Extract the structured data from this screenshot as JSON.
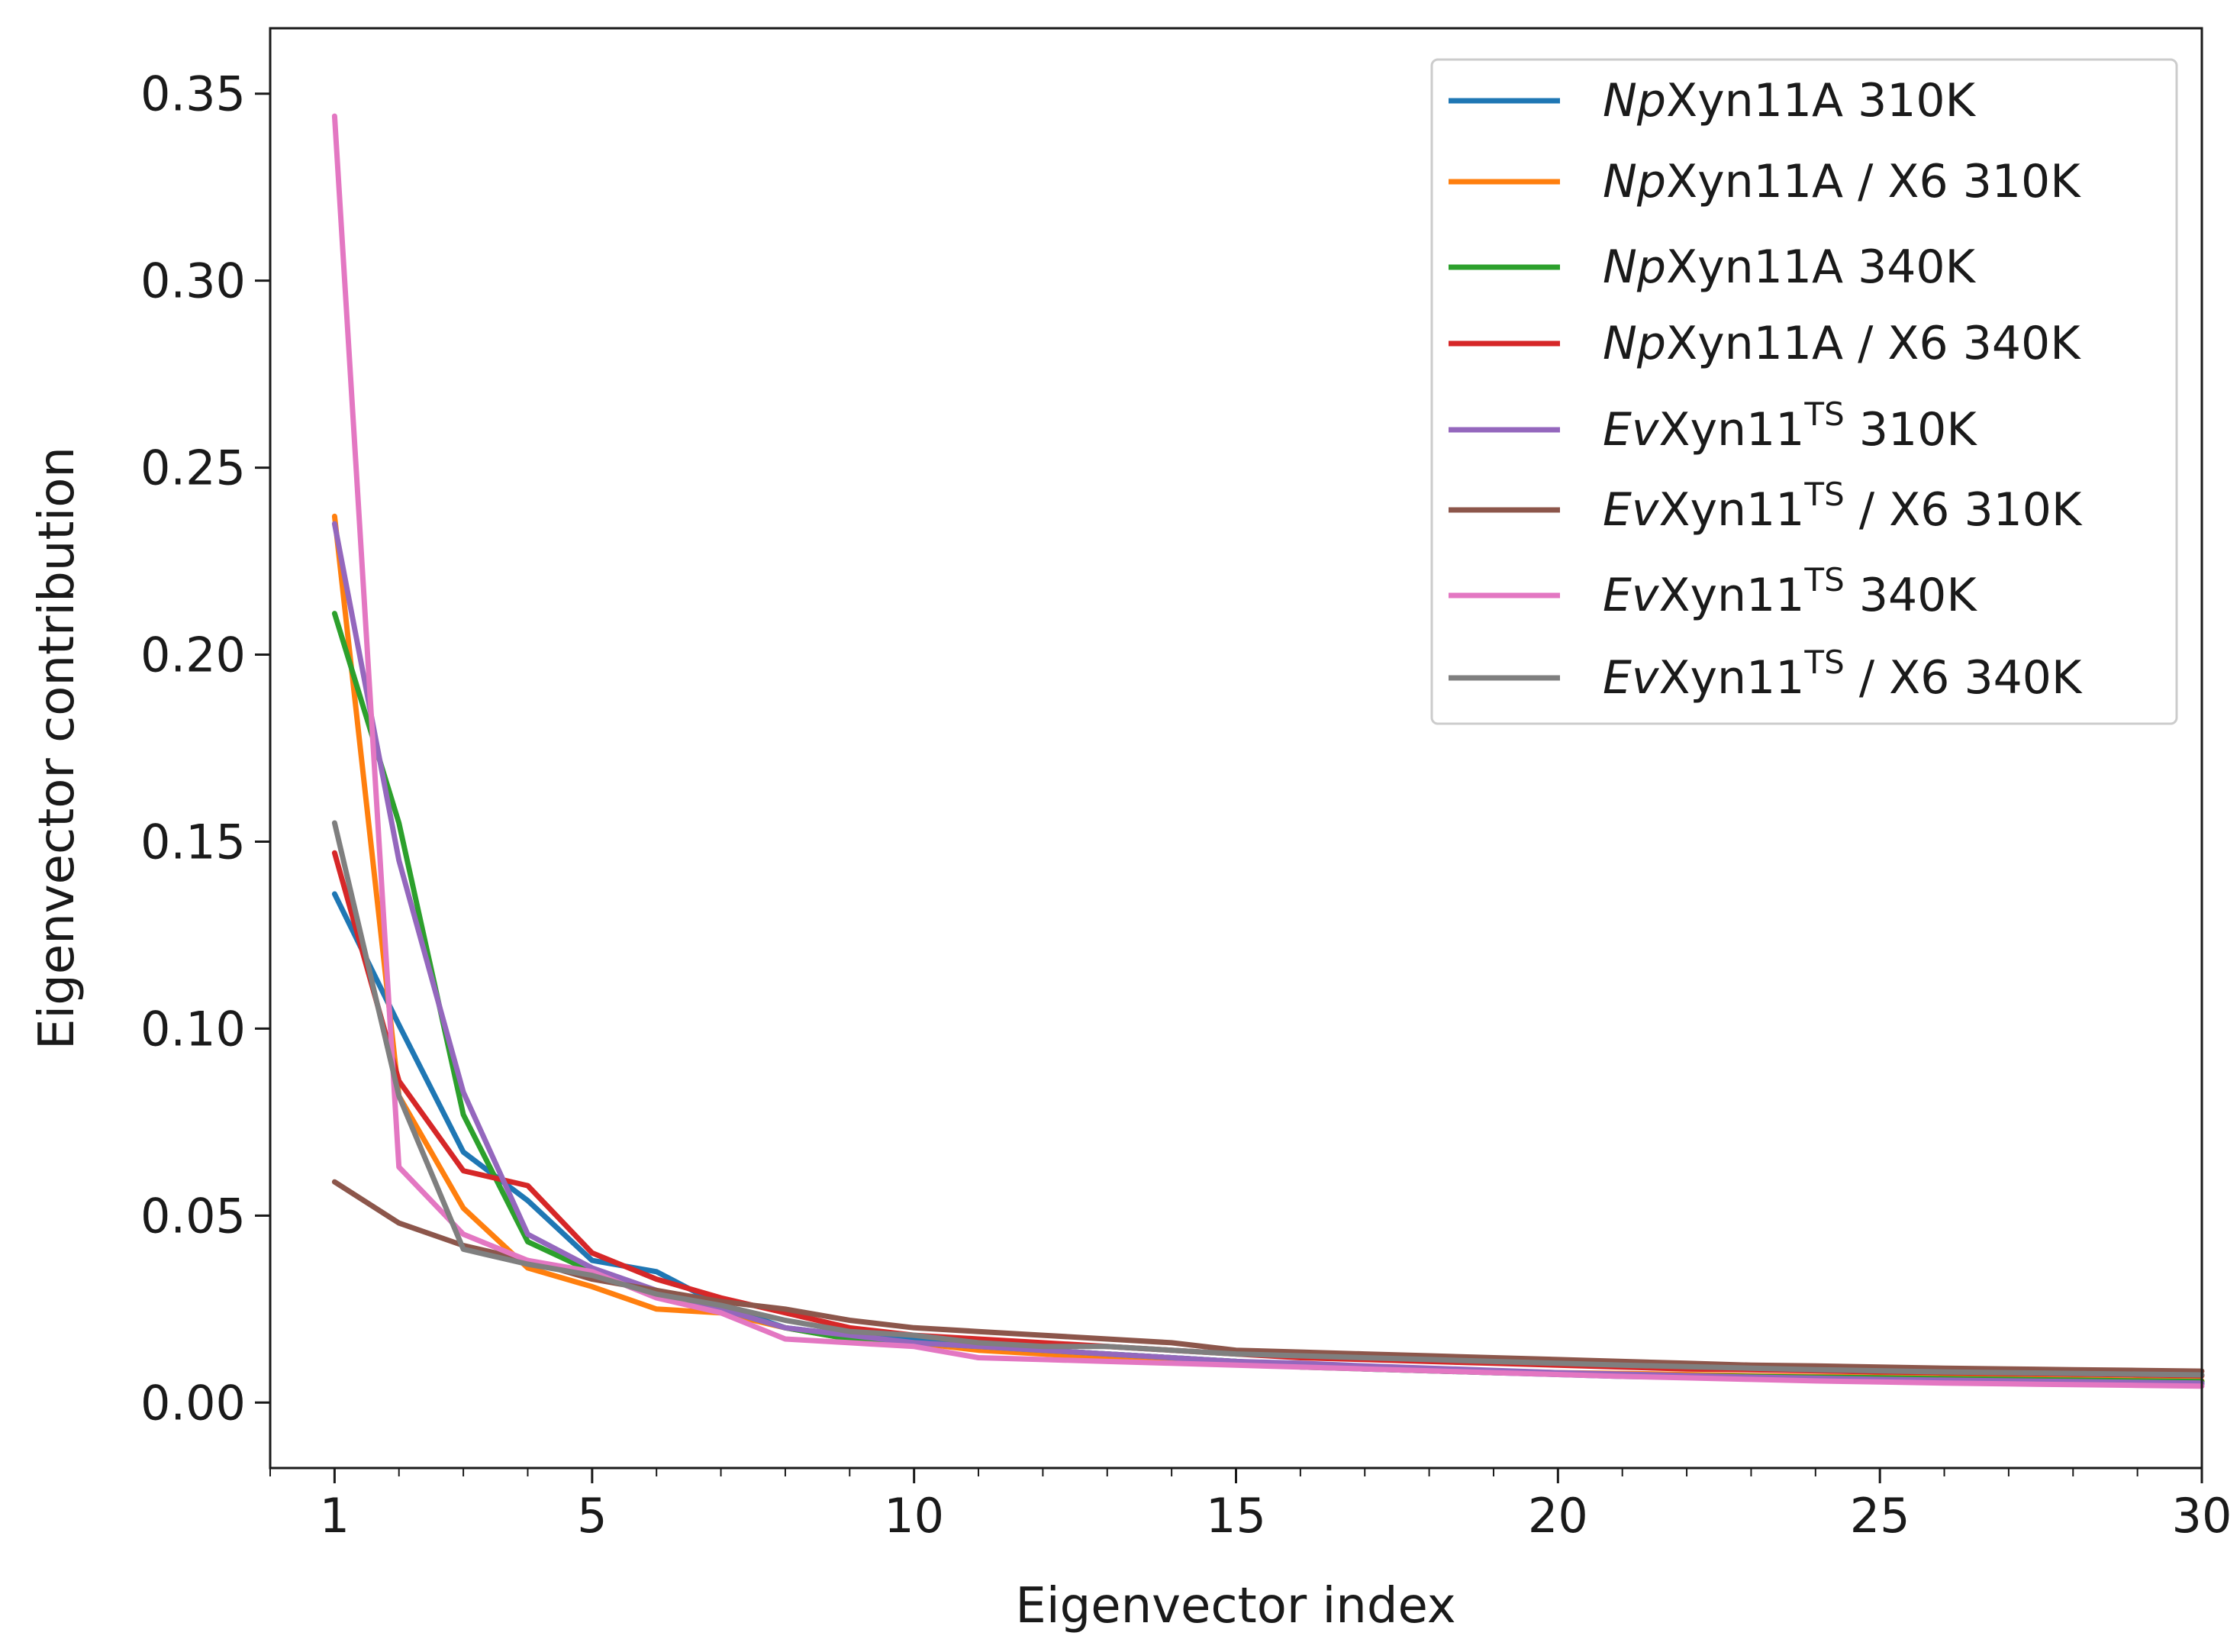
{
  "chart_data": {
    "type": "line",
    "title": "",
    "xlabel": "Eigenvector index",
    "ylabel": "Eigenvector contribution",
    "xlim": [
      0,
      30
    ],
    "ylim": [
      -0.0175,
      0.3675
    ],
    "xticks": [
      1,
      5,
      10,
      15,
      20,
      25,
      30
    ],
    "xtick_labels": [
      "1",
      "5",
      "10",
      "15",
      "20",
      "25",
      "30"
    ],
    "yticks": [
      0.0,
      0.05,
      0.1,
      0.15,
      0.2,
      0.25,
      0.3,
      0.35
    ],
    "ytick_labels": [
      "0.00",
      "0.05",
      "0.10",
      "0.15",
      "0.20",
      "0.25",
      "0.30",
      "0.35"
    ],
    "grid": false,
    "legend_position": "top-right",
    "x": [
      1,
      2,
      3,
      4,
      5,
      6,
      7,
      8,
      9,
      10,
      11,
      12,
      13,
      14,
      15,
      16,
      17,
      18,
      19,
      20,
      21,
      22,
      23,
      24,
      25,
      26,
      27,
      28,
      29,
      30
    ],
    "series": [
      {
        "name": "NpXyn11A 310K",
        "name_italic": "Np",
        "name_mid": "Xyn11A",
        "name_sup": "",
        "name_tail": " 310K",
        "color": "#1f77b4",
        "values": [
          0.136,
          0.101,
          0.067,
          0.054,
          0.038,
          0.035,
          0.026,
          0.02,
          0.018,
          0.017,
          0.015,
          0.014,
          0.013,
          0.012,
          0.011,
          0.01,
          0.009,
          0.0085,
          0.008,
          0.0075,
          0.007,
          0.0068,
          0.0065,
          0.0062,
          0.006,
          0.0058,
          0.0056,
          0.0054,
          0.0052,
          0.005
        ]
      },
      {
        "name": "NpXyn11A / X6 310K",
        "name_italic": "Np",
        "name_mid": "Xyn11A",
        "name_sup": "",
        "name_tail": " / X6 310K",
        "color": "#ff7f0e",
        "values": [
          0.237,
          0.082,
          0.052,
          0.036,
          0.031,
          0.025,
          0.024,
          0.02,
          0.017,
          0.016,
          0.014,
          0.013,
          0.012,
          0.011,
          0.0105,
          0.01,
          0.0095,
          0.009,
          0.0085,
          0.008,
          0.0078,
          0.0075,
          0.0072,
          0.007,
          0.0068,
          0.0066,
          0.0064,
          0.0062,
          0.006,
          0.0058
        ]
      },
      {
        "name": "NpXyn11A 340K",
        "name_italic": "Np",
        "name_mid": "Xyn11A",
        "name_sup": "",
        "name_tail": " 340K",
        "color": "#2ca02c",
        "values": [
          0.211,
          0.155,
          0.077,
          0.043,
          0.035,
          0.029,
          0.025,
          0.02,
          0.017,
          0.016,
          0.015,
          0.014,
          0.013,
          0.012,
          0.011,
          0.0095,
          0.009,
          0.0085,
          0.008,
          0.0078,
          0.0075,
          0.0072,
          0.007,
          0.0068,
          0.0066,
          0.0064,
          0.0062,
          0.006,
          0.0058,
          0.0056
        ]
      },
      {
        "name": "NpXyn11A / X6 340K",
        "name_italic": "Np",
        "name_mid": "Xyn11A",
        "name_sup": "",
        "name_tail": " / X6 340K",
        "color": "#d62728",
        "values": [
          0.147,
          0.086,
          0.062,
          0.058,
          0.04,
          0.033,
          0.028,
          0.024,
          0.02,
          0.018,
          0.017,
          0.016,
          0.015,
          0.014,
          0.013,
          0.012,
          0.0115,
          0.011,
          0.0105,
          0.01,
          0.0095,
          0.009,
          0.0088,
          0.0085,
          0.0082,
          0.008,
          0.0078,
          0.0076,
          0.0074,
          0.0072
        ]
      },
      {
        "name": "EvXyn11TS 310K",
        "name_italic": "Ev",
        "name_mid": "Xyn11",
        "name_sup": "TS",
        "name_tail": " 310K",
        "color": "#9467bd",
        "values": [
          0.235,
          0.145,
          0.083,
          0.045,
          0.036,
          0.03,
          0.025,
          0.02,
          0.018,
          0.016,
          0.015,
          0.014,
          0.013,
          0.012,
          0.011,
          0.0105,
          0.0098,
          0.0092,
          0.0086,
          0.008,
          0.0076,
          0.0072,
          0.0068,
          0.0065,
          0.0062,
          0.006,
          0.0058,
          0.0056,
          0.0054,
          0.0052
        ]
      },
      {
        "name": "EvXyn11TS / X6 310K",
        "name_italic": "Ev",
        "name_mid": "Xyn11",
        "name_sup": "TS",
        "name_tail": " / X6 310K",
        "color": "#8c564b",
        "values": [
          0.059,
          0.048,
          0.042,
          0.038,
          0.033,
          0.03,
          0.027,
          0.025,
          0.022,
          0.02,
          0.019,
          0.018,
          0.017,
          0.016,
          0.014,
          0.0135,
          0.013,
          0.0125,
          0.012,
          0.0115,
          0.011,
          0.0105,
          0.01,
          0.0098,
          0.0095,
          0.0092,
          0.009,
          0.0088,
          0.0086,
          0.0084
        ]
      },
      {
        "name": "EvXyn11TS 340K",
        "name_italic": "Ev",
        "name_mid": "Xyn11",
        "name_sup": "TS",
        "name_tail": " 340K",
        "color": "#e377c2",
        "values": [
          0.344,
          0.063,
          0.045,
          0.038,
          0.035,
          0.028,
          0.024,
          0.017,
          0.016,
          0.015,
          0.012,
          0.0115,
          0.011,
          0.0105,
          0.01,
          0.0095,
          0.009,
          0.0085,
          0.008,
          0.0075,
          0.007,
          0.0066,
          0.0062,
          0.0058,
          0.0055,
          0.0052,
          0.005,
          0.0048,
          0.0046,
          0.0044
        ]
      },
      {
        "name": "EvXyn11TS / X6 340K",
        "name_italic": "Ev",
        "name_mid": "Xyn11",
        "name_sup": "TS",
        "name_tail": " / X6 340K",
        "color": "#7f7f7f",
        "values": [
          0.155,
          0.082,
          0.041,
          0.037,
          0.034,
          0.029,
          0.026,
          0.022,
          0.019,
          0.018,
          0.016,
          0.015,
          0.015,
          0.014,
          0.013,
          0.0125,
          0.012,
          0.0115,
          0.011,
          0.0105,
          0.01,
          0.0096,
          0.0092,
          0.0088,
          0.0085,
          0.0082,
          0.008,
          0.0078,
          0.0076,
          0.0074
        ]
      }
    ]
  }
}
